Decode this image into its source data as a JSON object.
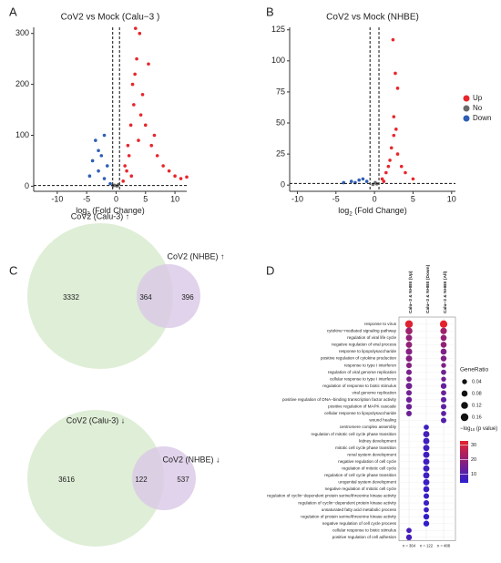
{
  "panel_labels": [
    "A",
    "B",
    "C",
    "D"
  ],
  "chart_data": [
    {
      "type": "scatter",
      "title": "CoV2 vs Mock (Calu−3 )",
      "xlabel": [
        "log",
        "2",
        " (Fold Change)"
      ],
      "xlim": [
        -14,
        12
      ],
      "xticks": [
        -10,
        -5,
        0,
        5,
        10
      ],
      "ylim": [
        -10,
        312
      ],
      "yticks": [
        0,
        100,
        200,
        300
      ],
      "x_thresholds": [
        -0.58,
        0.58
      ],
      "y_threshold": 1.3,
      "series": [
        {
          "name": "Up",
          "color": "#e8262b",
          "x": [
            1.5,
            2,
            2.5,
            3,
            2.8,
            3.5,
            4,
            3.2,
            2.2,
            1.8,
            4.5,
            5,
            6,
            7,
            8,
            10,
            11,
            5.5,
            6.5,
            4.2,
            3.8,
            2.6,
            1.2,
            9,
            12,
            3.3
          ],
          "y": [
            40,
            80,
            120,
            160,
            200,
            250,
            300,
            220,
            60,
            30,
            180,
            120,
            80,
            60,
            40,
            20,
            15,
            240,
            100,
            140,
            90,
            20,
            10,
            30,
            18,
            310
          ]
        },
        {
          "name": "No",
          "color": "#6b6b6b",
          "x": [
            -0.3,
            0.2,
            0.4,
            -0.5,
            0.1
          ],
          "y": [
            2,
            1,
            3,
            1,
            0.5
          ]
        },
        {
          "name": "Down",
          "color": "#2e5fb5",
          "x": [
            -1,
            -2,
            -3,
            -4,
            -2.5,
            -3.5,
            -1.5,
            -4.5,
            -2,
            -3
          ],
          "y": [
            5,
            15,
            30,
            50,
            60,
            90,
            40,
            20,
            100,
            70
          ]
        }
      ]
    },
    {
      "type": "scatter",
      "title": "CoV2 vs Mock (NHBE)",
      "xlabel": [
        "log",
        "2",
        " (Fold Change)"
      ],
      "xlim": [
        -11,
        10.5
      ],
      "xticks": [
        -10,
        -5,
        0,
        5,
        10
      ],
      "ylim": [
        -5,
        127
      ],
      "yticks": [
        0,
        25,
        50,
        75,
        100,
        125
      ],
      "x_thresholds": [
        -0.58,
        0.58
      ],
      "y_threshold": 1.3,
      "legend": "right",
      "series": [
        {
          "name": "Up",
          "color": "#e8262b",
          "x": [
            1,
            1.5,
            2,
            2.5,
            2.2,
            3,
            2.4,
            2.7,
            3,
            2.5,
            3.5,
            4,
            5,
            1.8,
            1.2,
            2.8
          ],
          "y": [
            5,
            10,
            20,
            40,
            30,
            25,
            117,
            90,
            78,
            55,
            15,
            10,
            5,
            15,
            3,
            45
          ]
        },
        {
          "name": "No",
          "color": "#6b6b6b",
          "x": [
            -0.2,
            0.3,
            0.1
          ],
          "y": [
            0.5,
            1,
            2
          ]
        },
        {
          "name": "Down",
          "color": "#2e5fb5",
          "x": [
            -1,
            -2,
            -3,
            -4,
            -1.5,
            -2.5
          ],
          "y": [
            3,
            4,
            3,
            2,
            5,
            2
          ]
        }
      ]
    },
    {
      "type": "venn",
      "sets": [
        "CoV2 (Calu-3) ↑",
        "CoV2 (NHBE) ↑"
      ],
      "values": [
        3332,
        364,
        396
      ],
      "colors": [
        "#d9ebcf",
        "#d9c8e6"
      ]
    },
    {
      "type": "venn",
      "sets": [
        "CoV2 (Calu-3) ↓",
        "CoV2 (NHBE) ↓"
      ],
      "values": [
        3616,
        122,
        537
      ],
      "colors": [
        "#d9ebcf",
        "#d9c8e6"
      ]
    },
    {
      "type": "dot",
      "terms": [
        "response to virus",
        "cytokine−mediated signaling pathway",
        "regulation of viral life cycle",
        "negative regulation of viral process",
        "response to lipopolysaccharide",
        "positive regulation of cytokine production",
        "response to type I interferon",
        "regulation of viral genome replication",
        "cellular response to type I interferon",
        "regulation of response to biotic stimulus",
        "viral genome replication",
        "positive regulation of DNA−binding transcription factor activity",
        "positive regulation of MAPK cascade",
        "cellular response to lipopolysaccharide",
        "wound healing",
        "centromere complex assembly",
        "regulation of mitotic cell cycle phase transition",
        "kidney development",
        "mitotic cell cycle phase transition",
        "renal system development",
        "negative regulation of cell cycle",
        "regulation of mitotic cell cycle",
        "regulation of cell cycle phase transition",
        "urogenital system development",
        "negative regulation of mitotic cell cycle",
        "regulation of cyclin−dependent protein serine/threonine kinase activity",
        "regulation of cyclin−dependent protein kinase activity",
        "unsaturated fatty acid metabolic process",
        "regulation of protein serine/threonine kinase activity",
        "negative regulation of cell cycle process",
        "cellular response to biotic stimulus",
        "positive regulation of cell adhesion"
      ],
      "series": [
        {
          "name": "Calu−3 & NHBE (Up)",
          "note": "n = 364",
          "gene_ratio": [
            0.16,
            0.12,
            0.09,
            0.09,
            0.1,
            0.09,
            0.06,
            0.06,
            0.05,
            0.09,
            0.06,
            0.07,
            0.07,
            0.06,
            null,
            null,
            null,
            null,
            null,
            null,
            null,
            null,
            null,
            null,
            null,
            null,
            null,
            null,
            null,
            null,
            0.05,
            0.07
          ],
          "neg_log10_p": [
            32,
            22,
            20,
            20,
            18,
            18,
            18,
            16,
            16,
            15,
            15,
            14,
            14,
            14,
            null,
            null,
            null,
            null,
            null,
            null,
            null,
            null,
            null,
            null,
            null,
            null,
            null,
            null,
            null,
            null,
            8,
            8
          ]
        },
        {
          "name": "Calu−3 & NHBE (Down)",
          "note": "n = 122",
          "gene_ratio": [
            null,
            null,
            null,
            null,
            null,
            null,
            null,
            null,
            null,
            null,
            null,
            null,
            null,
            null,
            null,
            0.05,
            0.09,
            0.09,
            0.09,
            0.09,
            0.09,
            0.09,
            0.09,
            0.09,
            0.08,
            0.06,
            0.06,
            0.05,
            0.07,
            0.07,
            null,
            null
          ],
          "neg_log10_p": [
            null,
            null,
            null,
            null,
            null,
            null,
            null,
            null,
            null,
            null,
            null,
            null,
            null,
            null,
            null,
            7,
            8,
            7,
            7,
            7,
            7,
            7,
            7,
            6,
            6,
            6,
            6,
            6,
            5,
            5,
            null,
            null
          ]
        },
        {
          "name": "Calu−3 & NHBE (All)",
          "note": "n = 488",
          "gene_ratio": [
            0.15,
            0.1,
            0.08,
            0.08,
            0.08,
            0.07,
            0.04,
            0.05,
            0.04,
            0.07,
            0.05,
            0.06,
            0.06,
            0.05,
            0.06,
            null,
            null,
            null,
            null,
            null,
            null,
            null,
            null,
            null,
            null,
            null,
            null,
            null,
            null,
            null,
            null,
            null
          ],
          "neg_log10_p": [
            33,
            22,
            20,
            20,
            17,
            17,
            17,
            15,
            15,
            13,
            14,
            12,
            12,
            12,
            10,
            null,
            null,
            null,
            null,
            null,
            null,
            null,
            null,
            null,
            null,
            null,
            null,
            null,
            null,
            null,
            null,
            null
          ]
        }
      ],
      "size_legend": {
        "title": "GeneRatio",
        "values": [
          0.04,
          0.08,
          0.12,
          0.16
        ]
      },
      "color_legend": {
        "title": [
          "−log",
          "10",
          " (p value)"
        ],
        "ticks": [
          10,
          20,
          30
        ],
        "lim": [
          4,
          33
        ],
        "colors": [
          "#2c1fd0",
          "#e5222c"
        ]
      }
    }
  ]
}
